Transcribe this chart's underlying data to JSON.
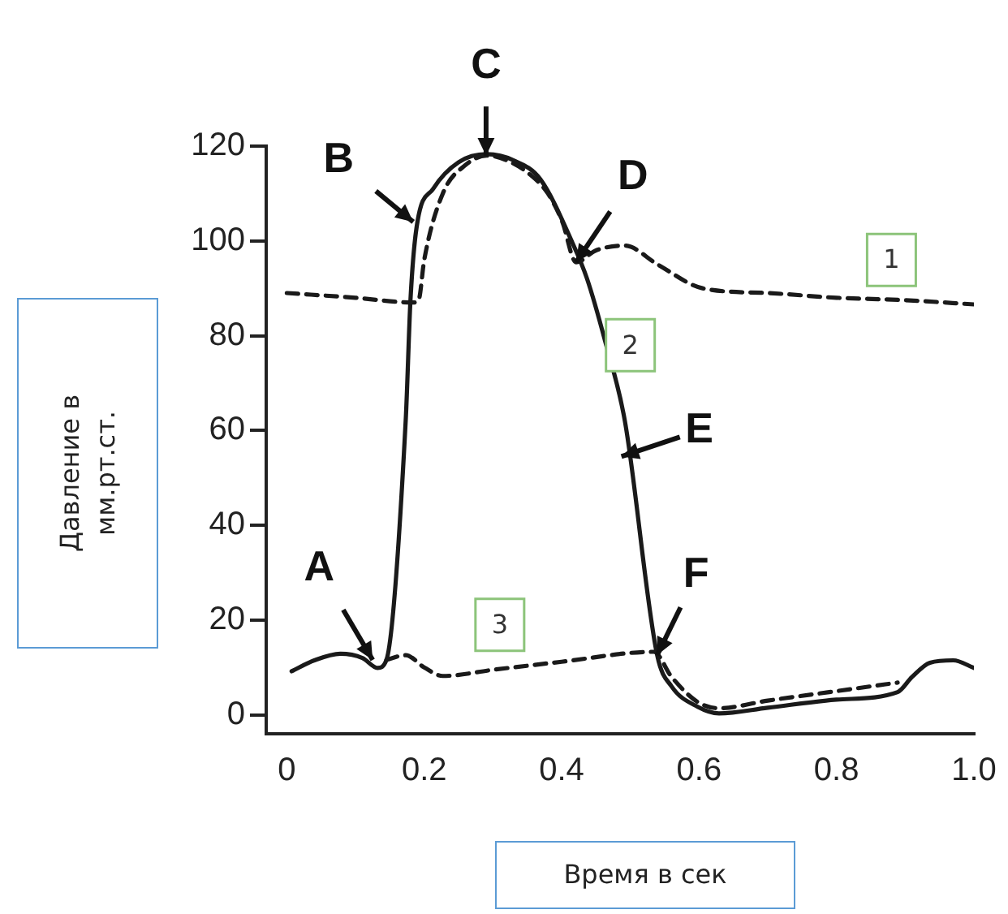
{
  "chart_data": {
    "type": "line",
    "xlabel": "Время в сек",
    "ylabel": "Давление в мм.рт.ст.",
    "xlim": [
      -0.03,
      1.0
    ],
    "xticks": [
      0,
      0.2,
      0.4,
      0.6,
      0.8,
      {
        "value": 1.0,
        "label": "1.0"
      }
    ],
    "ylim": [
      -4,
      120
    ],
    "yticks": [
      0,
      20,
      40,
      60,
      80,
      100,
      120
    ],
    "grid": false,
    "legend": false,
    "marker": "none",
    "series": [
      {
        "name": "1",
        "color": "#1a1a1a",
        "line_style": "dashed",
        "x": [
          0,
          0.1,
          0.184,
          0.192,
          0.2,
          0.227,
          0.26,
          0.291,
          0.32,
          0.354,
          0.38,
          0.401,
          0.421,
          0.45,
          0.492,
          0.54,
          0.605,
          0.7,
          0.8,
          0.9,
          1.0
        ],
        "values": [
          89,
          88,
          87,
          87.6,
          96,
          110,
          116,
          118,
          117,
          114,
          110,
          104,
          95.5,
          98,
          99,
          95,
          90,
          89,
          88,
          87.5,
          86.6
        ]
      },
      {
        "name": "2",
        "color": "#1a1a1a",
        "line_style": "solid",
        "x": [
          0.007,
          0.04,
          0.078,
          0.11,
          0.132,
          0.145,
          0.173,
          0.18,
          0.189,
          0.213,
          0.25,
          0.291,
          0.33,
          0.369,
          0.416,
          0.437,
          0.463,
          0.492,
          0.539,
          0.56,
          0.598,
          0.629,
          0.7,
          0.8,
          0.889,
          0.91,
          0.936,
          0.97,
          1.0
        ],
        "values": [
          9.2,
          11.5,
          12.9,
          12,
          9.9,
          11.6,
          62,
          87.6,
          103,
          111,
          116.6,
          118.3,
          117,
          113,
          99.5,
          92,
          79,
          62,
          12.6,
          6,
          1.7,
          0.3,
          1.5,
          3.2,
          4.8,
          8,
          11,
          11.5,
          9.9
        ]
      },
      {
        "name": "3",
        "color": "#1a1a1a",
        "line_style": "dashed",
        "x": [
          0.145,
          0.173,
          0.2,
          0.227,
          0.3,
          0.4,
          0.534,
          0.56,
          0.598,
          0.629,
          0.7,
          0.8,
          0.889
        ],
        "values": [
          11.6,
          12.6,
          10,
          8.2,
          9.5,
          11.2,
          13.3,
          8,
          2.7,
          1.4,
          3,
          5,
          6.8
        ]
      }
    ],
    "annotations": [
      {
        "text": "A",
        "x": 0.125,
        "y": 11.6
      },
      {
        "text": "B",
        "x": 0.184,
        "y": 104
      },
      {
        "text": "C",
        "x": 0.29,
        "y": 118
      },
      {
        "text": "D",
        "x": 0.421,
        "y": 95.5
      },
      {
        "text": "E",
        "x": 0.487,
        "y": 54.5
      },
      {
        "text": "F",
        "x": 0.539,
        "y": 12.6
      }
    ]
  }
}
